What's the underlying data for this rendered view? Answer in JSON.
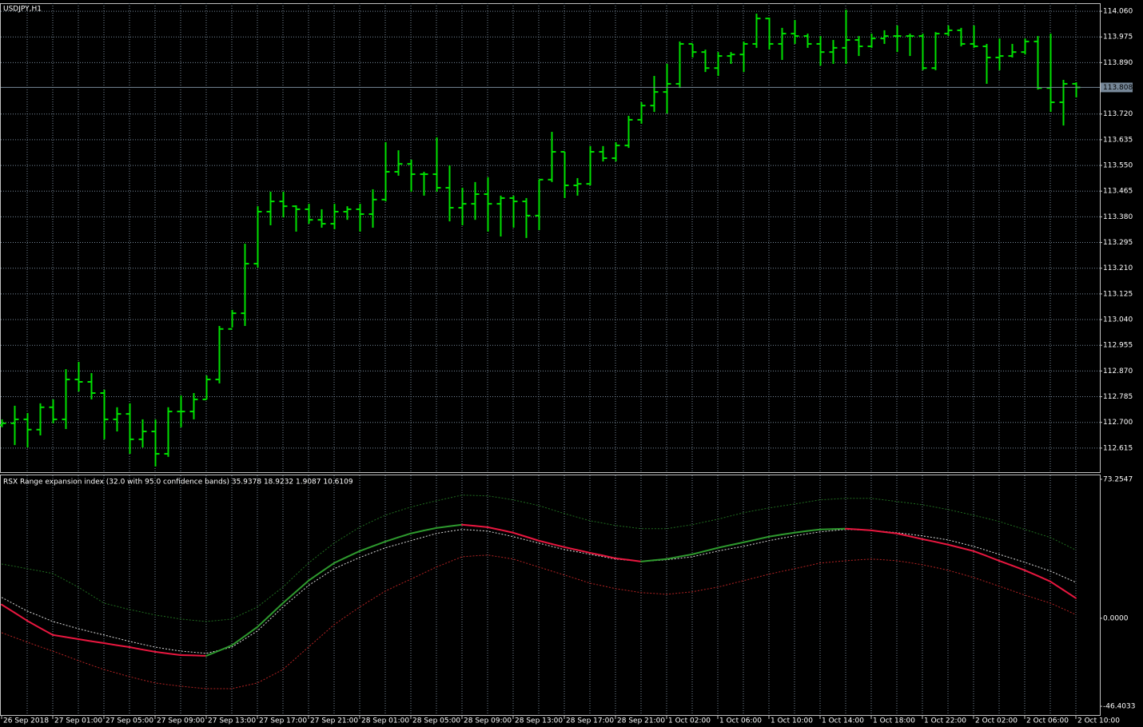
{
  "chart_data": [
    {
      "type": "ohlc",
      "title": "USDJPY,H1",
      "color": "#00e000",
      "grid": true,
      "categories": [
        "26 Sep 2018",
        null,
        null,
        null,
        "27 Sep 01:00",
        null,
        null,
        null,
        "27 Sep 05:00",
        null,
        null,
        null,
        "27 Sep 09:00",
        null,
        null,
        null,
        "27 Sep 13:00",
        null,
        null,
        null,
        "27 Sep 17:00",
        null,
        null,
        null,
        "27 Sep 21:00",
        null,
        null,
        null,
        "28 Sep 01:00",
        null,
        null,
        null,
        "28 Sep 05:00",
        null,
        null,
        null,
        "28 Sep 09:00",
        null,
        null,
        null,
        "28 Sep 13:00",
        null,
        null,
        null,
        "28 Sep 17:00",
        null,
        null,
        null,
        "28 Sep 21:00",
        null,
        null,
        null,
        "1 Oct 02:00",
        null,
        null,
        null,
        "1 Oct 06:00",
        null,
        null,
        null,
        "1 Oct 10:00",
        null,
        null,
        null,
        "1 Oct 14:00",
        null,
        null,
        null,
        "1 Oct 18:00",
        null,
        null,
        null,
        "1 Oct 22:00",
        null,
        null,
        null,
        "2 Oct 02:00",
        null,
        null,
        null,
        "2 Oct 06:00",
        null,
        null,
        null,
        "2 Oct 10:00"
      ],
      "open": [
        112.691,
        112.697,
        112.71,
        112.676,
        112.75,
        112.71,
        112.842,
        112.834,
        112.797,
        112.71,
        112.728,
        112.644,
        112.67,
        112.596,
        112.736,
        112.736,
        112.776,
        112.842,
        113.009,
        113.061,
        113.225,
        113.397,
        113.431,
        113.415,
        113.405,
        113.37,
        113.357,
        113.397,
        113.405,
        113.389,
        113.437,
        113.529,
        113.555,
        113.521,
        113.521,
        113.476,
        113.41,
        113.423,
        113.455,
        113.423,
        113.442,
        113.431,
        113.384,
        113.503,
        113.595,
        113.484,
        113.489,
        113.595,
        113.574,
        113.616,
        113.701,
        113.748,
        113.793,
        113.82,
        113.952,
        113.925,
        113.872,
        113.912,
        113.917,
        113.952,
        114.036,
        113.952,
        113.986,
        113.978,
        113.952,
        113.925,
        113.939,
        113.965,
        113.944,
        113.97,
        113.978,
        113.978,
        113.978,
        113.872,
        113.986,
        113.997,
        113.952,
        113.944,
        113.907,
        113.912,
        113.925,
        113.96,
        113.806,
        113.759,
        113.82
      ],
      "high": [
        112.71,
        112.755,
        112.731,
        112.763,
        112.776,
        112.876,
        112.9,
        112.863,
        112.808,
        112.75,
        112.763,
        112.71,
        112.71,
        112.75,
        112.789,
        112.797,
        112.855,
        113.019,
        113.072,
        113.291,
        113.415,
        113.463,
        113.463,
        113.418,
        113.423,
        113.405,
        113.423,
        113.415,
        113.423,
        113.471,
        113.627,
        113.6,
        113.569,
        113.529,
        113.643,
        113.55,
        113.476,
        113.495,
        113.511,
        113.45,
        113.45,
        113.442,
        113.503,
        113.661,
        113.595,
        113.508,
        113.614,
        113.614,
        113.627,
        113.714,
        113.759,
        113.846,
        113.886,
        113.96,
        113.952,
        113.933,
        113.925,
        113.925,
        113.96,
        114.052,
        114.039,
        114.005,
        114.031,
        113.986,
        113.978,
        113.965,
        114.065,
        113.978,
        113.986,
        113.997,
        114.013,
        113.986,
        113.986,
        113.991,
        114.013,
        114.005,
        114.013,
        113.952,
        113.97,
        113.952,
        113.97,
        113.978,
        113.986,
        113.833,
        113.825
      ],
      "low": [
        112.684,
        112.625,
        112.617,
        112.657,
        112.697,
        112.678,
        112.802,
        112.776,
        112.644,
        112.67,
        112.596,
        112.617,
        112.554,
        112.586,
        112.684,
        112.71,
        112.776,
        112.829,
        113.014,
        113.019,
        113.212,
        113.352,
        113.378,
        113.331,
        113.357,
        113.344,
        113.339,
        113.37,
        113.331,
        113.344,
        113.431,
        113.516,
        113.463,
        113.45,
        113.463,
        113.365,
        113.352,
        113.37,
        113.331,
        113.315,
        113.344,
        113.31,
        113.336,
        113.495,
        113.442,
        113.45,
        113.484,
        113.563,
        113.563,
        113.608,
        113.688,
        113.727,
        113.722,
        113.806,
        113.907,
        113.859,
        113.846,
        113.886,
        113.859,
        113.939,
        113.933,
        113.899,
        113.952,
        113.939,
        113.88,
        113.886,
        113.886,
        113.912,
        113.939,
        113.952,
        113.925,
        113.912,
        113.865,
        113.865,
        113.978,
        113.944,
        113.939,
        113.82,
        113.865,
        113.907,
        113.917,
        113.801,
        113.727,
        113.682,
        113.775
      ],
      "close": [
        112.697,
        112.71,
        112.676,
        112.75,
        112.71,
        112.842,
        112.834,
        112.797,
        112.71,
        112.728,
        112.644,
        112.67,
        112.596,
        112.736,
        112.736,
        112.776,
        112.842,
        113.009,
        113.061,
        113.225,
        113.397,
        113.431,
        113.415,
        113.405,
        113.37,
        113.357,
        113.397,
        113.405,
        113.389,
        113.437,
        113.529,
        113.555,
        113.521,
        113.521,
        113.476,
        113.41,
        113.423,
        113.455,
        113.423,
        113.442,
        113.431,
        113.384,
        113.503,
        113.595,
        113.484,
        113.489,
        113.595,
        113.574,
        113.616,
        113.701,
        113.748,
        113.793,
        113.82,
        113.952,
        113.925,
        113.872,
        113.912,
        113.917,
        113.952,
        114.036,
        113.952,
        113.986,
        113.978,
        113.952,
        113.925,
        113.939,
        113.965,
        113.944,
        113.97,
        113.978,
        113.978,
        113.978,
        113.872,
        113.986,
        113.997,
        113.952,
        113.944,
        113.907,
        113.912,
        113.925,
        113.96,
        113.806,
        113.759,
        113.82,
        113.808
      ],
      "ylim": [
        112.538,
        114.084
      ],
      "yticks": [
        {
          "value": 114.06,
          "label": "114.060"
        },
        113.975,
        {
          "value": 113.89,
          "label": "113.890"
        },
        {
          "value": 113.72,
          "label": "113.720"
        },
        113.635,
        {
          "value": 113.55,
          "label": "113.550"
        },
        113.465,
        {
          "value": 113.38,
          "label": "113.380"
        },
        113.295,
        {
          "value": 113.21,
          "label": "113.210"
        },
        113.125,
        {
          "value": 113.04,
          "label": "113.040"
        },
        112.955,
        {
          "value": 112.87,
          "label": "112.870"
        },
        112.785,
        {
          "value": 112.7,
          "label": "112.700"
        },
        112.615
      ],
      "current_price": 113.808,
      "current_price_color": "#778899"
    },
    {
      "type": "line",
      "title": "RSX Range expansion index (32.0 with 95.0 confidence bands) 35.9378 18.9232 1.9087 10.6109",
      "grid": "x",
      "ylim": [
        -51.0,
        74.9
      ],
      "yticks": [
        73.2547,
        {
          "value": 0,
          "label": "0.0000"
        },
        -46.4033
      ],
      "series": [
        {
          "color": "#1f6b1f",
          "style": "dotted",
          "values": [
            28.6,
            27.4,
            26.1,
            24.9,
            23.6,
            20.0,
            16.4,
            12.2,
            8.0,
            6.3,
            4.6,
            3.2,
            1.7,
            0.7,
            -0.4,
            -1.1,
            -1.7,
            -1.1,
            -0.4,
            2.8,
            5.9,
            11.2,
            16.4,
            22.8,
            29.1,
            34.4,
            39.6,
            43.8,
            48.0,
            51.2,
            54.3,
            56.5,
            58.6,
            60.3,
            61.9,
            63.4,
            64.9,
            64.7,
            64.5,
            63.5,
            62.4,
            60.9,
            59.4,
            57.3,
            55.2,
            53.3,
            51.4,
            50.2,
            48.9,
            48.1,
            47.2,
            47.2,
            47.2,
            48.3,
            49.3,
            50.8,
            52.2,
            53.9,
            55.6,
            56.9,
            58.1,
            59.2,
            60.2,
            61.3,
            62.4,
            62.8,
            63.2,
            63.2,
            63.2,
            62.4,
            61.5,
            60.7,
            59.8,
            58.6,
            57.3,
            55.8,
            54.3,
            52.7,
            51.0,
            48.9,
            46.8,
            44.7,
            42.6,
            39.3,
            35.9378
          ]
        },
        {
          "color": "#d8d8d8",
          "style": "dotted",
          "values": [
            11.0,
            7.4,
            3.8,
            1.1,
            -1.7,
            -3.6,
            -5.5,
            -7.2,
            -8.8,
            -10.5,
            -12.2,
            -13.7,
            -15.2,
            -16.3,
            -17.3,
            -17.9,
            -18.5,
            -16.9,
            -15.2,
            -11.0,
            -6.7,
            -0.4,
            5.9,
            11.6,
            17.3,
            21.7,
            26.1,
            29.1,
            32.0,
            34.6,
            37.1,
            39.0,
            40.9,
            42.8,
            44.7,
            45.8,
            46.8,
            46.4,
            45.9,
            44.5,
            43.0,
            41.3,
            39.6,
            37.9,
            36.2,
            35.0,
            33.7,
            32.5,
            31.2,
            30.6,
            29.9,
            30.4,
            30.8,
            31.6,
            32.4,
            33.9,
            35.4,
            36.7,
            37.9,
            39.4,
            40.9,
            42.2,
            43.4,
            44.5,
            45.5,
            46.2,
            46.8,
            46.6,
            46.3,
            45.7,
            45.1,
            44.3,
            43.4,
            42.4,
            41.3,
            39.6,
            37.9,
            35.8,
            33.7,
            31.6,
            29.5,
            27.2,
            24.9,
            21.9,
            18.9232
          ]
        },
        {
          "color": "#b22222",
          "style": "dotted",
          "values": [
            -7.6,
            -10.1,
            -12.6,
            -15.0,
            -17.3,
            -19.8,
            -22.3,
            -24.7,
            -27.0,
            -28.9,
            -30.8,
            -32.5,
            -34.1,
            -35.0,
            -35.8,
            -36.5,
            -37.1,
            -37.1,
            -37.1,
            -35.6,
            -34.1,
            -30.6,
            -27.0,
            -21.1,
            -15.2,
            -9.3,
            -3.4,
            1.3,
            5.9,
            10.1,
            14.3,
            17.5,
            20.6,
            23.8,
            27.0,
            29.7,
            32.4,
            32.9,
            33.3,
            32.3,
            31.2,
            29.1,
            27.0,
            24.9,
            22.8,
            20.7,
            18.5,
            17.1,
            15.6,
            14.6,
            13.5,
            13.1,
            12.6,
            13.3,
            13.9,
            15.2,
            16.4,
            18.1,
            19.8,
            21.5,
            23.2,
            24.7,
            26.1,
            27.6,
            29.1,
            29.7,
            30.3,
            30.8,
            31.2,
            30.8,
            30.3,
            29.3,
            28.2,
            26.8,
            25.3,
            23.4,
            21.5,
            19.2,
            16.9,
            14.6,
            12.2,
            10.1,
            8.0,
            5.0,
            1.9087
          ]
        },
        {
          "up_color": "#2e9a2e",
          "down_color": "#e8173f",
          "style": "solid",
          "values": [
            7.2,
            3.0,
            -1.3,
            -5.1,
            -8.8,
            -9.9,
            -11.0,
            -12.1,
            -13.1,
            -14.2,
            -15.2,
            -16.5,
            -17.7,
            -18.6,
            -19.4,
            -19.6,
            -19.8,
            -17.1,
            -14.3,
            -9.5,
            -4.6,
            1.7,
            8.0,
            13.9,
            19.8,
            24.5,
            29.1,
            32.3,
            35.4,
            37.9,
            40.4,
            42.6,
            44.7,
            46.2,
            47.6,
            48.5,
            49.3,
            48.7,
            48.0,
            46.6,
            45.1,
            43.0,
            40.9,
            39.2,
            37.5,
            36.0,
            34.5,
            33.1,
            31.6,
            30.8,
            29.9,
            30.6,
            31.2,
            32.5,
            33.7,
            35.4,
            37.1,
            38.6,
            40.0,
            41.5,
            43.0,
            44.1,
            45.1,
            46.0,
            46.8,
            47.0,
            47.2,
            46.8,
            46.3,
            45.5,
            44.7,
            43.2,
            41.7,
            40.3,
            38.8,
            37.1,
            35.4,
            32.9,
            30.3,
            27.8,
            25.3,
            22.4,
            19.4,
            15.0,
            10.6109
          ]
        }
      ]
    }
  ]
}
